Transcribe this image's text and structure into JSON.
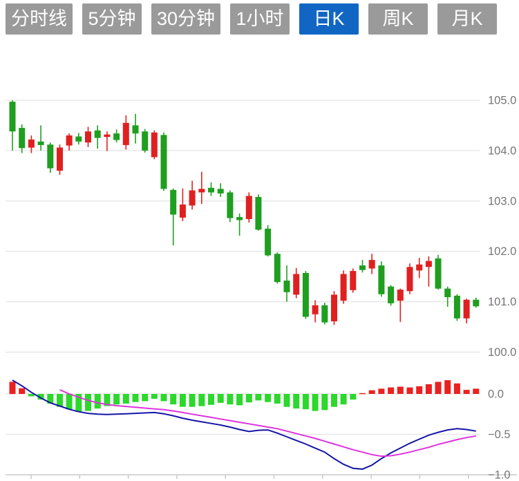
{
  "toolbar": {
    "intervals": [
      {
        "name": "minute-line",
        "label": "分时线",
        "active": false
      },
      {
        "name": "5min",
        "label": "5分钟",
        "active": false
      },
      {
        "name": "30min",
        "label": "30分钟",
        "active": false
      },
      {
        "name": "1hour",
        "label": "1小时",
        "active": false
      },
      {
        "name": "daily-k",
        "label": "日K",
        "active": true
      },
      {
        "name": "weekly-k",
        "label": "周K",
        "active": false
      },
      {
        "name": "monthly-k",
        "label": "月K",
        "active": false
      }
    ],
    "active_bg": "#1166c4",
    "inactive_bg": "#9a9a9a"
  },
  "chart_data": {
    "type": "candlestick",
    "subpanel_type": "macd",
    "color_convention": "red-up-green-down",
    "price_axis": {
      "ticks": [
        105.0,
        104.0,
        103.0,
        102.0,
        101.0,
        100.0
      ],
      "labels": [
        "105.0",
        "104.0",
        "103.0",
        "102.0",
        "101.0",
        "100.0"
      ],
      "range": [
        99.8,
        105.2
      ],
      "position": "right",
      "grid": true
    },
    "macd_axis": {
      "ticks": [
        0.0,
        -0.5,
        -1.0
      ],
      "labels": [
        "0.0",
        "−0.5",
        "−1.0"
      ],
      "range": [
        -1.05,
        0.25
      ],
      "position": "right",
      "grid": true
    },
    "candles_ohlc": [
      [
        104.97,
        105.0,
        104.0,
        104.38
      ],
      [
        104.45,
        104.52,
        103.95,
        104.05
      ],
      [
        104.06,
        104.3,
        103.95,
        104.22
      ],
      [
        104.18,
        104.5,
        104.0,
        104.11
      ],
      [
        104.12,
        104.16,
        103.56,
        103.65
      ],
      [
        103.6,
        104.12,
        103.52,
        104.06
      ],
      [
        104.1,
        104.34,
        104.0,
        104.3
      ],
      [
        104.28,
        104.35,
        104.12,
        104.18
      ],
      [
        104.16,
        104.47,
        104.07,
        104.38
      ],
      [
        104.4,
        104.5,
        104.04,
        104.25
      ],
      [
        104.27,
        104.38,
        103.99,
        104.32
      ],
      [
        104.34,
        104.42,
        104.16,
        104.21
      ],
      [
        104.11,
        104.7,
        104.02,
        104.55
      ],
      [
        104.5,
        104.73,
        104.14,
        104.34
      ],
      [
        104.38,
        104.43,
        103.96,
        104.0
      ],
      [
        103.87,
        104.4,
        103.83,
        104.36
      ],
      [
        104.31,
        104.36,
        103.2,
        103.24
      ],
      [
        103.22,
        103.25,
        102.12,
        102.73
      ],
      [
        102.67,
        103.25,
        102.6,
        102.93
      ],
      [
        102.91,
        103.4,
        102.83,
        103.21
      ],
      [
        103.17,
        103.58,
        102.94,
        103.24
      ],
      [
        103.26,
        103.37,
        103.1,
        103.17
      ],
      [
        103.24,
        103.35,
        103.08,
        103.15
      ],
      [
        103.17,
        103.21,
        102.58,
        102.66
      ],
      [
        102.68,
        102.75,
        102.31,
        102.62
      ],
      [
        102.64,
        103.17,
        102.57,
        103.1
      ],
      [
        103.08,
        103.13,
        102.41,
        102.43
      ],
      [
        102.45,
        102.52,
        101.9,
        101.92
      ],
      [
        101.95,
        101.98,
        101.36,
        101.39
      ],
      [
        101.42,
        101.72,
        101.0,
        101.19
      ],
      [
        101.14,
        101.67,
        101.07,
        101.55
      ],
      [
        101.57,
        101.61,
        100.66,
        100.7
      ],
      [
        100.75,
        101.03,
        100.59,
        100.93
      ],
      [
        100.93,
        100.98,
        100.55,
        100.59
      ],
      [
        100.61,
        101.21,
        100.54,
        101.14
      ],
      [
        101.02,
        101.62,
        100.96,
        101.55
      ],
      [
        101.23,
        101.66,
        101.18,
        101.61
      ],
      [
        101.72,
        101.83,
        101.58,
        101.63
      ],
      [
        101.66,
        101.95,
        101.55,
        101.83
      ],
      [
        101.72,
        101.8,
        101.1,
        101.15
      ],
      [
        101.3,
        101.33,
        100.92,
        100.97
      ],
      [
        101.02,
        101.26,
        100.6,
        101.24
      ],
      [
        101.21,
        101.76,
        101.15,
        101.69
      ],
      [
        101.62,
        101.87,
        101.47,
        101.74
      ],
      [
        101.69,
        101.9,
        101.3,
        101.81
      ],
      [
        101.86,
        101.93,
        101.24,
        101.26
      ],
      [
        101.26,
        101.3,
        100.9,
        101.09
      ],
      [
        101.12,
        101.15,
        100.62,
        100.67
      ],
      [
        100.67,
        101.06,
        100.57,
        101.04
      ],
      [
        101.04,
        101.08,
        100.88,
        100.91
      ]
    ],
    "macd": {
      "hist": [
        0.15,
        0.07,
        -0.03,
        -0.07,
        -0.12,
        -0.16,
        -0.19,
        -0.22,
        -0.21,
        -0.18,
        -0.15,
        -0.13,
        -0.12,
        -0.1,
        -0.09,
        -0.06,
        -0.09,
        -0.13,
        -0.16,
        -0.16,
        -0.15,
        -0.135,
        -0.11,
        -0.13,
        -0.14,
        -0.105,
        -0.08,
        -0.1,
        -0.12,
        -0.16,
        -0.18,
        -0.19,
        -0.21,
        -0.2,
        -0.16,
        -0.13,
        -0.07,
        0.01,
        0.045,
        0.065,
        0.08,
        0.09,
        0.08,
        0.095,
        0.12,
        0.15,
        0.17,
        0.13,
        0.05,
        0.065
      ],
      "dif": [
        0.17,
        0.1,
        0.02,
        -0.05,
        -0.11,
        -0.15,
        -0.19,
        -0.22,
        -0.24,
        -0.25,
        -0.255,
        -0.25,
        -0.245,
        -0.24,
        -0.235,
        -0.23,
        -0.245,
        -0.27,
        -0.3,
        -0.325,
        -0.345,
        -0.365,
        -0.385,
        -0.41,
        -0.44,
        -0.465,
        -0.45,
        -0.445,
        -0.485,
        -0.53,
        -0.575,
        -0.62,
        -0.67,
        -0.72,
        -0.8,
        -0.87,
        -0.92,
        -0.93,
        -0.88,
        -0.8,
        -0.73,
        -0.67,
        -0.61,
        -0.56,
        -0.51,
        -0.475,
        -0.445,
        -0.43,
        -0.44,
        -0.46
      ],
      "dea": [
        null,
        null,
        null,
        null,
        null,
        0.05,
        0.0,
        -0.04,
        -0.08,
        -0.11,
        -0.13,
        -0.145,
        -0.155,
        -0.165,
        -0.175,
        -0.185,
        -0.195,
        -0.21,
        -0.23,
        -0.25,
        -0.27,
        -0.29,
        -0.31,
        -0.33,
        -0.35,
        -0.37,
        -0.39,
        -0.41,
        -0.43,
        -0.46,
        -0.49,
        -0.52,
        -0.55,
        -0.585,
        -0.62,
        -0.655,
        -0.69,
        -0.72,
        -0.75,
        -0.77,
        -0.765,
        -0.745,
        -0.72,
        -0.69,
        -0.66,
        -0.625,
        -0.595,
        -0.565,
        -0.54,
        -0.52
      ]
    },
    "colors": {
      "up": "#e02020",
      "down": "#1f9e1f",
      "hist_up": "#ec2020",
      "hist_down": "#2bd82b",
      "dif": "#1414a6",
      "dea": "#dd33dd",
      "grid": "#e4e4e4",
      "axis_line": "#c9c9c9",
      "axis_label": "#757575"
    }
  }
}
